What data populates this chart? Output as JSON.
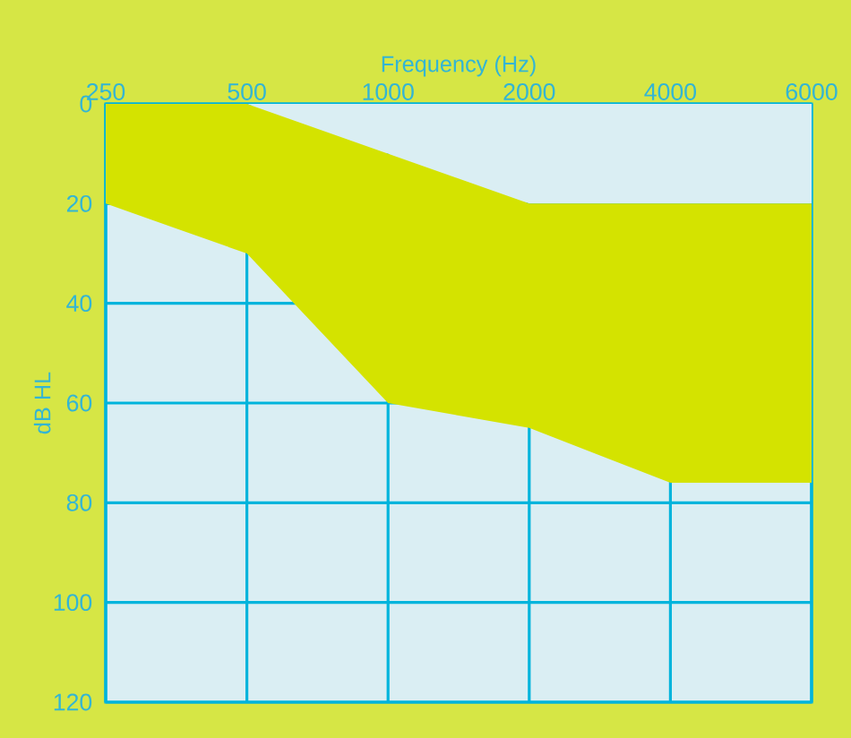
{
  "chart_data": {
    "type": "area",
    "stacked": true,
    "xlabel": "Frequency (Hz)",
    "ylabel": "dB HL",
    "categories": [
      "250",
      "500",
      "1000",
      "2000",
      "4000",
      "6000"
    ],
    "series": [
      {
        "color": "#daeef3",
        "values": [
          0,
          0,
          10,
          20,
          20,
          20
        ]
      },
      {
        "color": "#d4e300",
        "values": [
          20,
          30,
          50,
          45,
          56,
          56
        ]
      }
    ],
    "ylim": [
      120,
      0
    ],
    "yticks": [
      0,
      20,
      40,
      60,
      80,
      100,
      120
    ],
    "grid": true
  }
}
